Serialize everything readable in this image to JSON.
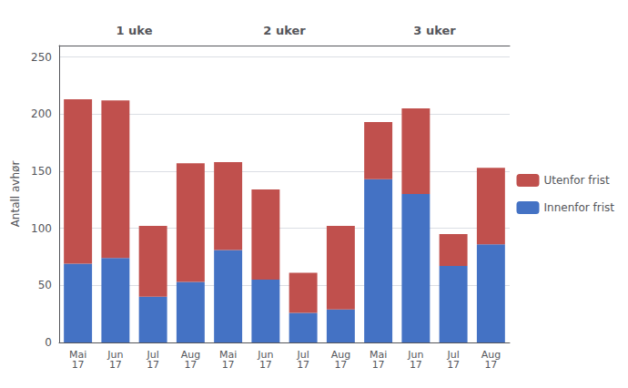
{
  "chart_data": {
    "type": "bar",
    "stacked": true,
    "ylabel": "Antall avhør",
    "groups": [
      "1 uke",
      "2 uker",
      "3 uker"
    ],
    "categories": [
      "Mai\n17",
      "Jun\n17",
      "Jul\n17",
      "Aug\n17",
      "Mai\n17",
      "Jun\n17",
      "Jul\n17",
      "Aug\n17",
      "Mai\n17",
      "Jun\n17",
      "Jul\n17",
      "Aug\n17"
    ],
    "series": [
      {
        "name": "Innenfor frist",
        "color": "#4472C4",
        "values": [
          69,
          74,
          40,
          53,
          81,
          55,
          26,
          29,
          143,
          130,
          67,
          86
        ]
      },
      {
        "name": "Utenfor frist",
        "color": "#C0504D",
        "values": [
          144,
          138,
          62,
          104,
          77,
          79,
          35,
          73,
          50,
          75,
          28,
          67
        ]
      }
    ],
    "ylim": [
      0,
      260
    ],
    "yticks": [
      0,
      50,
      100,
      150,
      200,
      250
    ],
    "grid": true,
    "legend": "right"
  }
}
